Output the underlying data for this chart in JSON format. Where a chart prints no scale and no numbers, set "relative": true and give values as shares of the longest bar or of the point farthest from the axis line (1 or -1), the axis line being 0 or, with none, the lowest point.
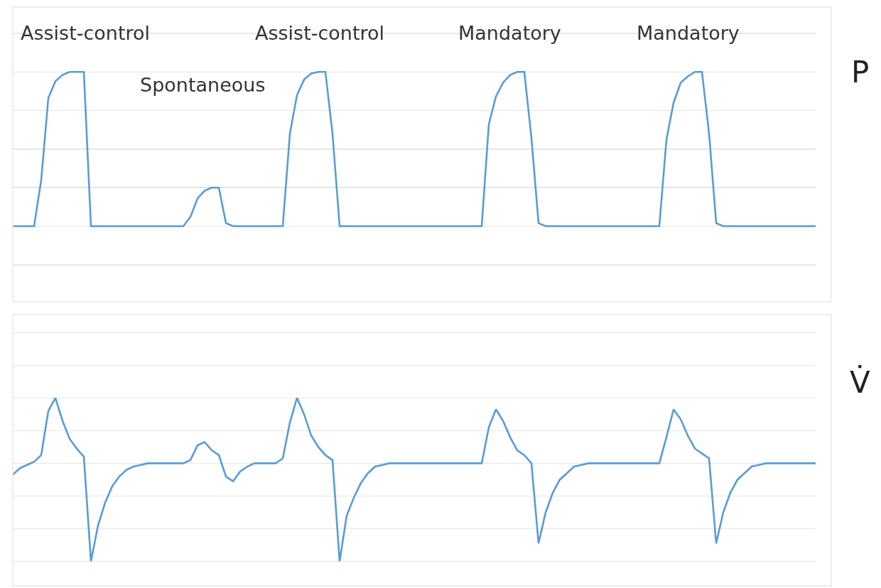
{
  "chart_data": [
    {
      "type": "line",
      "relative": true,
      "ylabel": "P",
      "grid": "y",
      "annotations": [
        "Assist-control",
        "Spontaneous",
        "Assist-control",
        "Mandatory",
        "Mandatory"
      ],
      "categories": [
        null,
        null,
        null,
        null,
        null,
        null,
        null,
        null,
        null,
        null,
        null,
        null,
        null,
        null,
        null,
        null,
        null,
        null,
        null,
        null,
        null,
        null,
        null,
        null,
        null,
        null,
        null,
        null,
        null,
        null,
        null,
        null,
        null,
        null,
        null,
        null,
        null,
        null,
        null,
        null,
        null,
        null,
        null,
        null,
        null,
        null,
        null,
        null,
        null,
        null,
        null,
        null,
        null,
        null,
        null,
        null,
        null,
        null,
        null,
        null,
        null,
        null,
        null,
        null,
        null,
        null,
        null,
        null,
        null,
        null,
        null,
        null,
        null,
        null,
        null,
        null,
        null,
        null,
        null,
        null,
        null,
        null,
        null,
        null,
        null,
        null,
        null,
        null,
        null,
        null,
        null,
        null,
        null,
        null,
        null,
        null,
        null,
        null,
        null,
        null,
        null,
        null,
        null,
        null,
        null,
        null,
        null,
        null,
        null,
        null,
        null,
        null,
        null,
        null
      ],
      "series": [
        {
          "color": "#5b9bd5",
          "values": [
            0,
            0,
            0,
            0,
            0.3,
            0.83,
            0.94,
            0.98,
            1,
            1,
            1,
            0,
            0,
            0,
            0,
            0,
            0,
            0,
            0,
            0,
            0,
            0,
            0,
            0,
            0,
            0.06,
            0.18,
            0.23,
            0.25,
            0.25,
            0.02,
            0,
            0,
            0,
            0,
            0,
            0,
            0,
            0,
            0.6,
            0.85,
            0.95,
            0.99,
            1,
            1,
            0.6,
            0,
            0,
            0,
            0,
            0,
            0,
            0,
            0,
            0,
            0,
            0,
            0,
            0,
            0,
            0,
            0,
            0,
            0,
            0,
            0,
            0,
            0.66,
            0.84,
            0.93,
            0.98,
            1,
            1,
            0.57,
            0.02,
            0,
            0,
            0,
            0,
            0,
            0,
            0,
            0,
            0,
            0,
            0,
            0,
            0,
            0,
            0,
            0,
            0,
            0.56,
            0.8,
            0.93,
            0.97,
            1,
            1,
            0.6,
            0.02,
            0,
            0,
            0,
            0,
            0,
            0,
            0,
            0,
            0,
            0,
            0,
            0,
            0,
            0
          ]
        }
      ]
    },
    {
      "type": "line",
      "relative": true,
      "ylabel": "V̇",
      "grid": "y",
      "categories": [
        null,
        null,
        null,
        null,
        null,
        null,
        null,
        null,
        null,
        null,
        null,
        null,
        null,
        null,
        null,
        null,
        null,
        null,
        null,
        null,
        null,
        null,
        null,
        null,
        null,
        null,
        null,
        null,
        null,
        null,
        null,
        null,
        null,
        null,
        null,
        null,
        null,
        null,
        null,
        null,
        null,
        null,
        null,
        null,
        null,
        null,
        null,
        null,
        null,
        null,
        null,
        null,
        null,
        null,
        null,
        null,
        null,
        null,
        null,
        null,
        null,
        null,
        null,
        null,
        null,
        null,
        null,
        null,
        null,
        null,
        null,
        null,
        null,
        null,
        null,
        null,
        null,
        null,
        null,
        null,
        null,
        null,
        null,
        null,
        null,
        null,
        null,
        null,
        null,
        null,
        null,
        null,
        null,
        null,
        null,
        null,
        null,
        null,
        null,
        null,
        null,
        null,
        null,
        null,
        null,
        null,
        null,
        null,
        null,
        null,
        null,
        null,
        null,
        null
      ],
      "series": [
        {
          "color": "#5b9bd5",
          "values": [
            0.53,
            0.57,
            0.59,
            0.61,
            0.65,
            0.92,
            1,
            0.86,
            0.75,
            0.69,
            0.64,
            0,
            0.22,
            0.36,
            0.46,
            0.52,
            0.56,
            0.58,
            0.59,
            0.6,
            0.6,
            0.6,
            0.6,
            0.6,
            0.6,
            0.62,
            0.71,
            0.73,
            0.68,
            0.65,
            0.52,
            0.49,
            0.55,
            0.58,
            0.6,
            0.6,
            0.6,
            0.6,
            0.63,
            0.85,
            1,
            0.9,
            0.77,
            0.7,
            0.65,
            0.62,
            0,
            0.28,
            0.39,
            0.48,
            0.54,
            0.58,
            0.59,
            0.6,
            0.6,
            0.6,
            0.6,
            0.6,
            0.6,
            0.6,
            0.6,
            0.6,
            0.6,
            0.6,
            0.6,
            0.6,
            0.6,
            0.82,
            0.93,
            0.86,
            0.76,
            0.68,
            0.65,
            0.6,
            0.11,
            0.3,
            0.42,
            0.5,
            0.54,
            0.58,
            0.59,
            0.6,
            0.6,
            0.6,
            0.6,
            0.6,
            0.6,
            0.6,
            0.6,
            0.6,
            0.6,
            0.6,
            0.76,
            0.93,
            0.87,
            0.77,
            0.69,
            0.66,
            0.63,
            0.11,
            0.3,
            0.42,
            0.5,
            0.54,
            0.58,
            0.59,
            0.6,
            0.6,
            0.6,
            0.6,
            0.6,
            0.6,
            0.6,
            0.6
          ]
        }
      ]
    }
  ]
}
